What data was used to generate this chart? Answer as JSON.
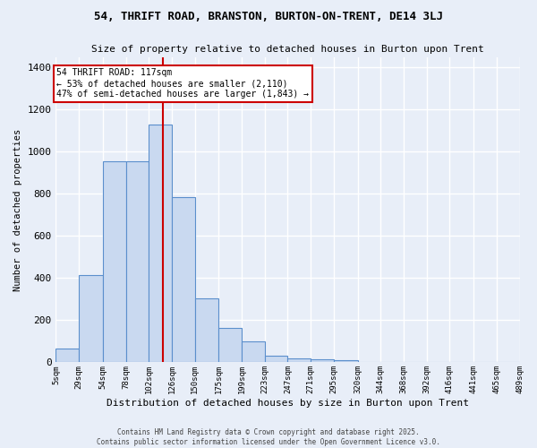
{
  "title_line1": "54, THRIFT ROAD, BRANSTON, BURTON-ON-TRENT, DE14 3LJ",
  "title_line2": "Size of property relative to detached houses in Burton upon Trent",
  "xlabel": "Distribution of detached houses by size in Burton upon Trent",
  "ylabel": "Number of detached properties",
  "footnote1": "Contains HM Land Registry data © Crown copyright and database right 2025.",
  "footnote2": "Contains public sector information licensed under the Open Government Licence v3.0.",
  "annotation_line1": "54 THRIFT ROAD: 117sqm",
  "annotation_line2": "← 53% of detached houses are smaller (2,110)",
  "annotation_line3": "47% of semi-detached houses are larger (1,843) →",
  "bar_edges": [
    5,
    29,
    54,
    78,
    102,
    126,
    150,
    175,
    199,
    223,
    247,
    271,
    295,
    320,
    344,
    368,
    392,
    416,
    441,
    465,
    489
  ],
  "bar_heights": [
    65,
    415,
    955,
    955,
    1130,
    785,
    305,
    165,
    100,
    30,
    18,
    15,
    10,
    0,
    0,
    0,
    0,
    0,
    0,
    0
  ],
  "bar_color": "#c9d9f0",
  "bar_edge_color": "#5b8fcc",
  "vline_x": 117,
  "vline_color": "#cc0000",
  "ylim": [
    0,
    1450
  ],
  "background_color": "#e8eef8",
  "grid_color": "#ffffff",
  "annotation_box_color": "#ffffff",
  "annotation_box_edge": "#cc0000",
  "tick_labels": [
    "5sqm",
    "29sqm",
    "54sqm",
    "78sqm",
    "102sqm",
    "126sqm",
    "150sqm",
    "175sqm",
    "199sqm",
    "223sqm",
    "247sqm",
    "271sqm",
    "295sqm",
    "320sqm",
    "344sqm",
    "368sqm",
    "392sqm",
    "416sqm",
    "441sqm",
    "465sqm",
    "489sqm"
  ]
}
